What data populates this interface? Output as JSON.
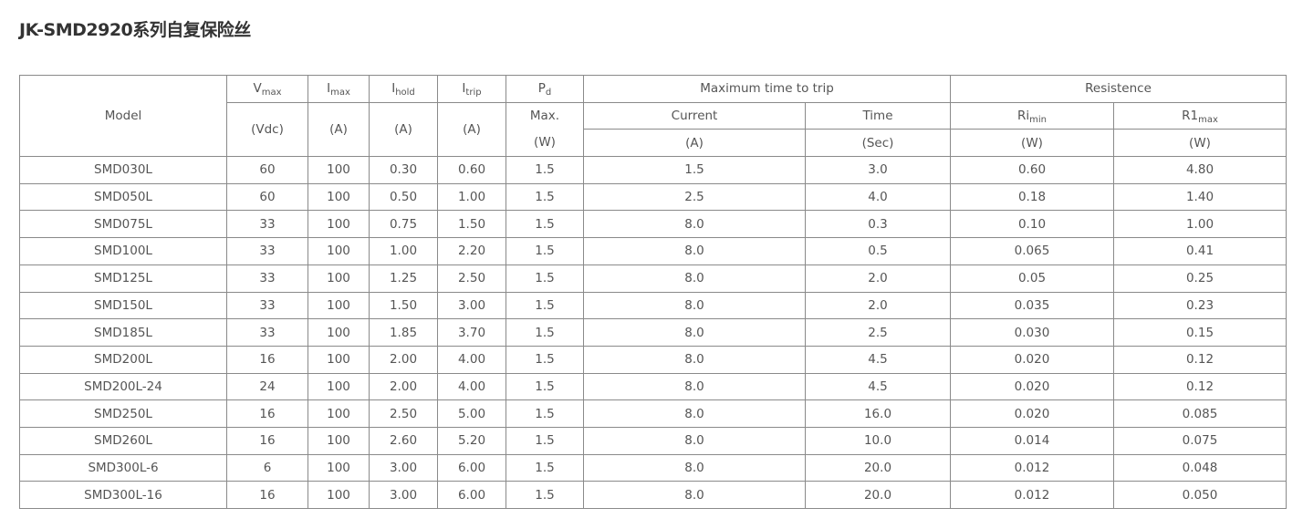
{
  "title": "JK-SMD2920系列自复保险丝",
  "header": {
    "model": "Model",
    "vmax": {
      "main": "V",
      "sub": "max",
      "unit": "(Vdc)"
    },
    "imax": {
      "main": "I",
      "sub": "max",
      "unit": "(A)"
    },
    "ihold": {
      "main": "I",
      "sub": "hold",
      "unit": "(A)"
    },
    "itrip": {
      "main": "I",
      "sub": "trip",
      "unit": "(A)"
    },
    "pd": {
      "main": "P",
      "sub": "d",
      "unit1": "Max.",
      "unit2": "(W)"
    },
    "trip_group": "Maximum time to trip",
    "current": {
      "label": "Current",
      "unit": "(A)"
    },
    "time": {
      "label": "Time",
      "unit": "(Sec)"
    },
    "res_group": "Resistence",
    "rimin": {
      "main": "Ri",
      "sub": "min",
      "unit": "(W)"
    },
    "r1max": {
      "main": "R1",
      "sub": "max",
      "unit": "(W)"
    }
  },
  "rows": [
    [
      "SMD030L",
      "60",
      "100",
      "0.30",
      "0.60",
      "1.5",
      "1.5",
      "3.0",
      "0.60",
      "4.80"
    ],
    [
      "SMD050L",
      "60",
      "100",
      "0.50",
      "1.00",
      "1.5",
      "2.5",
      "4.0",
      "0.18",
      "1.40"
    ],
    [
      "SMD075L",
      "33",
      "100",
      "0.75",
      "1.50",
      "1.5",
      "8.0",
      "0.3",
      "0.10",
      "1.00"
    ],
    [
      "SMD100L",
      "33",
      "100",
      "1.00",
      "2.20",
      "1.5",
      "8.0",
      "0.5",
      "0.065",
      "0.41"
    ],
    [
      "SMD125L",
      "33",
      "100",
      "1.25",
      "2.50",
      "1.5",
      "8.0",
      "2.0",
      "0.05",
      "0.25"
    ],
    [
      "SMD150L",
      "33",
      "100",
      "1.50",
      "3.00",
      "1.5",
      "8.0",
      "2.0",
      "0.035",
      "0.23"
    ],
    [
      "SMD185L",
      "33",
      "100",
      "1.85",
      "3.70",
      "1.5",
      "8.0",
      "2.5",
      "0.030",
      "0.15"
    ],
    [
      "SMD200L",
      "16",
      "100",
      "2.00",
      "4.00",
      "1.5",
      "8.0",
      "4.5",
      "0.020",
      "0.12"
    ],
    [
      "SMD200L-24",
      "24",
      "100",
      "2.00",
      "4.00",
      "1.5",
      "8.0",
      "4.5",
      "0.020",
      "0.12"
    ],
    [
      "SMD250L",
      "16",
      "100",
      "2.50",
      "5.00",
      "1.5",
      "8.0",
      "16.0",
      "0.020",
      "0.085"
    ],
    [
      "SMD260L",
      "16",
      "100",
      "2.60",
      "5.20",
      "1.5",
      "8.0",
      "10.0",
      "0.014",
      "0.075"
    ],
    [
      "SMD300L-6",
      "6",
      "100",
      "3.00",
      "6.00",
      "1.5",
      "8.0",
      "20.0",
      "0.012",
      "0.048"
    ],
    [
      "SMD300L-16",
      "16",
      "100",
      "3.00",
      "6.00",
      "1.5",
      "8.0",
      "20.0",
      "0.012",
      "0.050"
    ]
  ]
}
